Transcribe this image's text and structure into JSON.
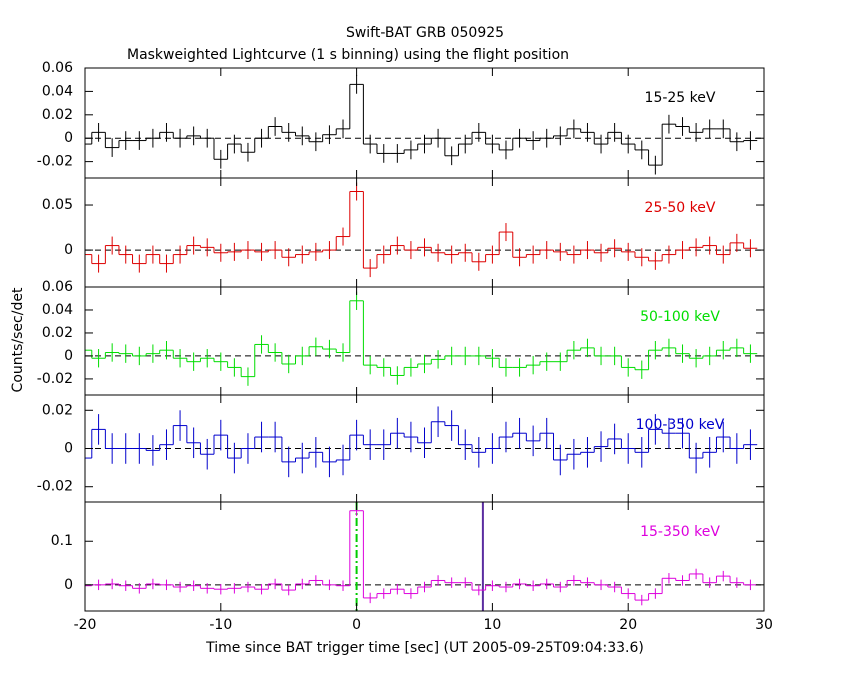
{
  "chart_data": {
    "type": "step",
    "title": "Swift-BAT GRB 050925",
    "subtitle": "Maskweighted Lightcurve (1 s binning) using the flight position",
    "xlabel": "Time since BAT trigger time [sec] (UT 2005-09-25T09:04:33.6)",
    "ylabel": "Counts/sec/det",
    "xlim": [
      -20,
      30
    ],
    "xticks": [
      -20,
      -10,
      0,
      10,
      20,
      30
    ],
    "x": [
      -20,
      -19,
      -18,
      -17,
      -16,
      -15,
      -14,
      -13,
      -12,
      -11,
      -10,
      -9,
      -8,
      -7,
      -6,
      -5,
      -4,
      -3,
      -2,
      -1,
      0,
      1,
      2,
      3,
      4,
      5,
      6,
      7,
      8,
      9,
      10,
      11,
      12,
      13,
      14,
      15,
      16,
      17,
      18,
      19,
      20,
      21,
      22,
      23,
      24,
      25,
      26,
      27,
      28,
      29
    ],
    "panels": [
      {
        "name": "15-25 keV",
        "color": "#000000",
        "ylim": [
          -0.034,
          0.06
        ],
        "yticks": [
          -0.02,
          0,
          0.02,
          0.04,
          0.06
        ],
        "error": 0.008,
        "values": [
          -0.005,
          0.005,
          -0.008,
          -0.002,
          -0.002,
          0.0,
          0.005,
          0.0,
          0.002,
          0.0,
          -0.018,
          -0.005,
          -0.012,
          0.0,
          0.01,
          0.005,
          0.002,
          -0.003,
          0.003,
          0.008,
          0.046,
          -0.005,
          -0.013,
          -0.013,
          -0.01,
          -0.005,
          0.0,
          -0.015,
          -0.005,
          0.005,
          -0.005,
          -0.01,
          0.0,
          -0.002,
          0.0,
          0.002,
          0.008,
          0.005,
          -0.005,
          0.005,
          -0.005,
          -0.01,
          -0.023,
          0.012,
          0.01,
          0.005,
          0.008,
          0.008,
          -0.003,
          -0.002
        ]
      },
      {
        "name": "25-50 keV",
        "color": "#dd0000",
        "ylim": [
          -0.041,
          0.08
        ],
        "yticks": [
          0,
          0.05
        ],
        "error": 0.01,
        "values": [
          -0.005,
          -0.015,
          0.005,
          -0.005,
          -0.015,
          -0.005,
          -0.015,
          -0.005,
          0.005,
          0.003,
          -0.003,
          -0.002,
          0.0,
          -0.002,
          0.0,
          -0.008,
          -0.005,
          -0.002,
          0.0,
          0.015,
          0.065,
          -0.02,
          -0.005,
          0.005,
          0.0,
          0.003,
          -0.003,
          -0.005,
          -0.003,
          -0.013,
          -0.005,
          0.02,
          -0.008,
          -0.005,
          0.0,
          -0.002,
          -0.005,
          0.0,
          -0.003,
          0.002,
          -0.002,
          -0.008,
          -0.012,
          -0.005,
          0.0,
          0.003,
          0.005,
          -0.005,
          0.008,
          0.002
        ]
      },
      {
        "name": "50-100 keV",
        "color": "#00dd00",
        "ylim": [
          -0.034,
          0.06
        ],
        "yticks": [
          -0.02,
          0,
          0.02,
          0.04,
          0.06
        ],
        "error": 0.008,
        "values": [
          0.005,
          -0.002,
          0.003,
          0.002,
          0.0,
          0.002,
          0.005,
          -0.002,
          -0.005,
          -0.002,
          -0.005,
          -0.01,
          -0.018,
          0.01,
          0.003,
          -0.007,
          0.0,
          0.008,
          0.006,
          0.003,
          0.048,
          -0.008,
          -0.01,
          -0.017,
          -0.01,
          -0.007,
          -0.003,
          0.0,
          0.0,
          0.0,
          -0.002,
          -0.01,
          -0.01,
          -0.008,
          -0.005,
          -0.005,
          0.005,
          0.007,
          0.0,
          0.0,
          -0.01,
          -0.012,
          0.005,
          0.007,
          0.002,
          -0.002,
          0.0,
          0.005,
          0.007,
          0.002
        ]
      },
      {
        "name": "100-350 keV",
        "color": "#0000cc",
        "ylim": [
          -0.028,
          0.028
        ],
        "yticks": [
          -0.02,
          0,
          0.02
        ],
        "error": 0.008,
        "values": [
          -0.005,
          0.01,
          0.0,
          0.0,
          0.0,
          -0.001,
          0.002,
          0.012,
          0.003,
          -0.003,
          0.007,
          -0.005,
          0.0,
          0.006,
          0.006,
          -0.007,
          -0.005,
          -0.002,
          -0.007,
          -0.006,
          0.007,
          0.002,
          0.002,
          0.008,
          0.006,
          0.003,
          0.014,
          0.012,
          0.002,
          -0.002,
          0.0,
          0.006,
          0.008,
          0.004,
          0.008,
          -0.006,
          -0.003,
          -0.002,
          0.001,
          0.005,
          0.0,
          -0.002,
          0.01,
          0.008,
          0.008,
          -0.005,
          -0.002,
          0.006,
          0.0,
          0.002
        ]
      },
      {
        "name": "15-350 keV",
        "color": "#dd00dd",
        "ylim": [
          -0.06,
          0.19
        ],
        "yticks": [
          0,
          0.1
        ],
        "error": 0.012,
        "markers": [
          {
            "x": 0,
            "color": "#00cc00"
          },
          {
            "x": 9.3,
            "color": "#5a2ca0"
          }
        ],
        "values": [
          -0.002,
          0.0,
          0.002,
          -0.002,
          -0.008,
          0.002,
          0.0,
          -0.005,
          -0.002,
          -0.008,
          -0.01,
          -0.008,
          -0.005,
          -0.01,
          0.002,
          -0.012,
          0.002,
          0.01,
          0.0,
          -0.002,
          0.17,
          -0.03,
          -0.02,
          -0.01,
          -0.02,
          -0.005,
          0.01,
          0.005,
          0.005,
          -0.012,
          -0.002,
          -0.005,
          0.002,
          -0.002,
          0.002,
          -0.005,
          0.01,
          0.005,
          0.0,
          -0.005,
          -0.02,
          -0.035,
          -0.02,
          0.015,
          0.01,
          0.025,
          0.005,
          0.02,
          0.005,
          0.0
        ]
      }
    ]
  }
}
